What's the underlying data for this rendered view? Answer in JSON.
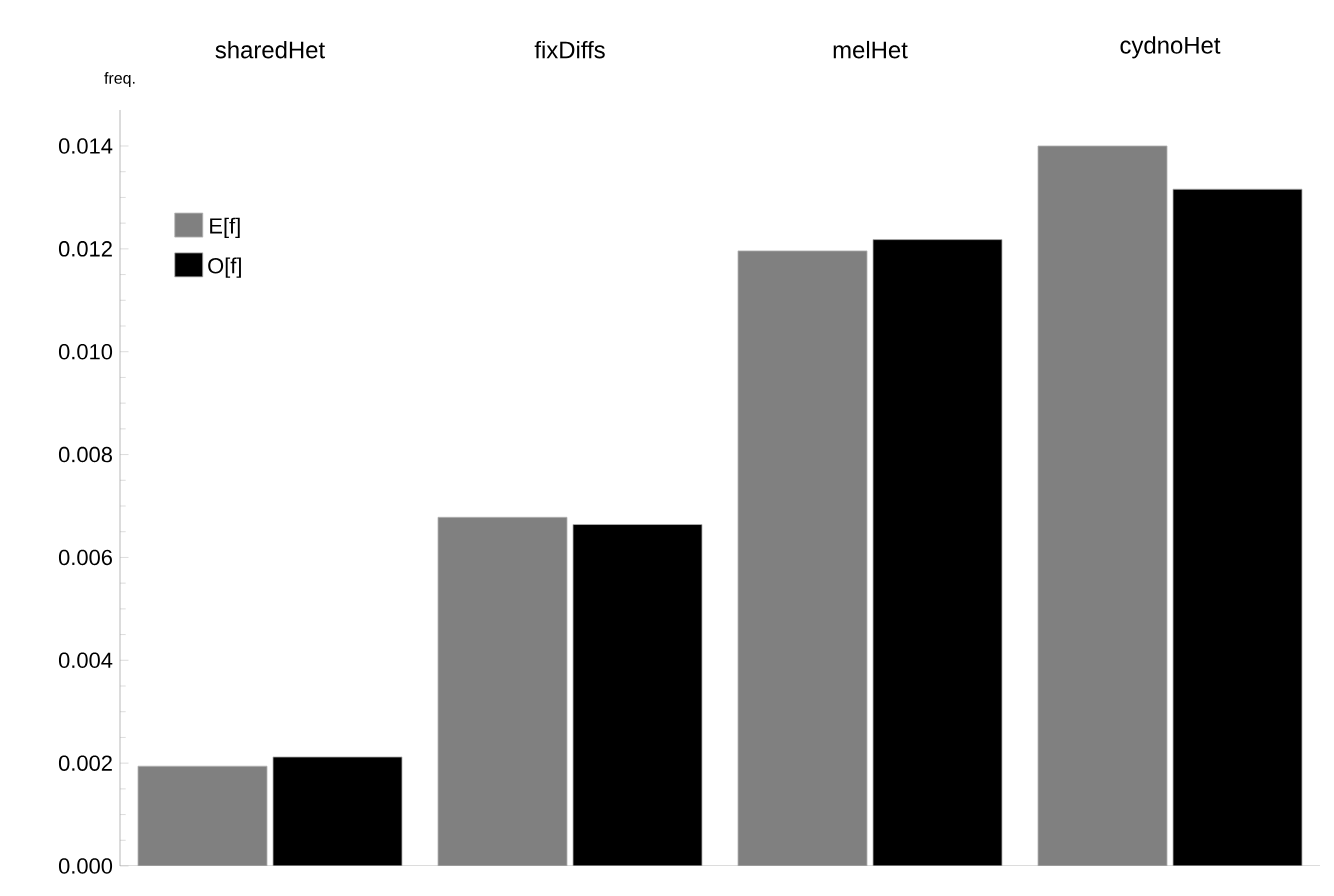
{
  "chart_data": {
    "type": "bar",
    "ylabel": "freq.",
    "categories": [
      "sharedHet",
      "fixDiffs",
      "melHet",
      "cydnoHet"
    ],
    "series": [
      {
        "name": "E[f]",
        "color": "#808080",
        "values": [
          0.00194,
          0.00678,
          0.01196,
          0.014
        ]
      },
      {
        "name": "O[f]",
        "color": "#000000",
        "values": [
          0.00212,
          0.00664,
          0.01218,
          0.01316
        ]
      }
    ],
    "ylim": [
      0,
      0.0147
    ],
    "yticks": [
      {
        "value": 0,
        "label": "0.000"
      },
      {
        "value": 0.002,
        "label": "0.002"
      },
      {
        "value": 0.004,
        "label": "0.004"
      },
      {
        "value": 0.006,
        "label": "0.006"
      },
      {
        "value": 0.008,
        "label": "0.008"
      },
      {
        "value": 0.01,
        "label": "0.010"
      },
      {
        "value": 0.012,
        "label": "0.012"
      },
      {
        "value": 0.014,
        "label": "0.014"
      }
    ],
    "grid": false,
    "legend": "top left"
  }
}
